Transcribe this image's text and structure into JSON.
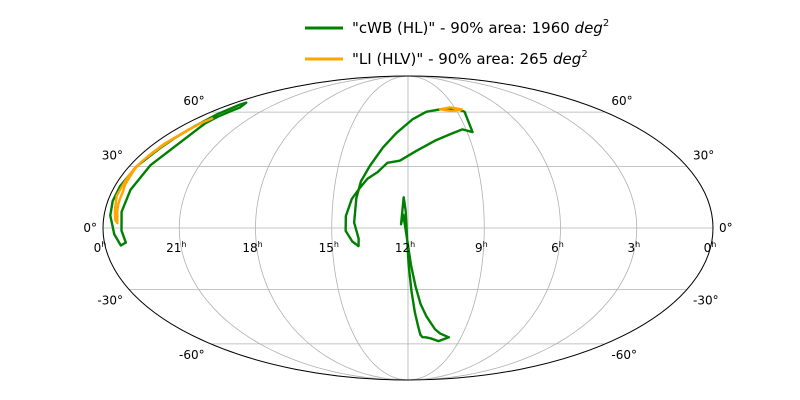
{
  "chart_data": {
    "type": "line",
    "projection": "mollweide",
    "grid": true,
    "legend_placement": "top-center",
    "ra_ticks": [
      {
        "value": 0,
        "label": "0",
        "sup": "h"
      },
      {
        "value": 21,
        "label": "21",
        "sup": "h"
      },
      {
        "value": 18,
        "label": "18",
        "sup": "h"
      },
      {
        "value": 15,
        "label": "15",
        "sup": "h"
      },
      {
        "value": 12,
        "label": "12",
        "sup": "h"
      },
      {
        "value": 9,
        "label": "9",
        "sup": "h"
      },
      {
        "value": 6,
        "label": "6",
        "sup": "h"
      },
      {
        "value": 3,
        "label": "3",
        "sup": "h"
      },
      {
        "value": 0,
        "label": "0",
        "sup": "h"
      }
    ],
    "dec_ticks": [
      {
        "value": 60,
        "label": "60°"
      },
      {
        "value": 30,
        "label": "30°"
      },
      {
        "value": 0,
        "label": "0°"
      },
      {
        "value": -30,
        "label": "-30°"
      },
      {
        "value": -60,
        "label": "-60°"
      }
    ],
    "series": [
      {
        "name_prefix": "\"cWB (HL)\" - 90% area: 1960 ",
        "name_unit": "deg",
        "name_exp": "2",
        "color": "#008000",
        "contours": [
          [
            [
              -4.1,
              1.8
            ],
            [
              -2.6,
              14.8
            ],
            [
              -1.4,
              8.4
            ],
            [
              -0.6,
              -4.3
            ],
            [
              0.4,
              -17.9
            ],
            [
              2.2,
              -30.6
            ],
            [
              4.8,
              -41.7
            ],
            [
              7.9,
              -49.8
            ],
            [
              10.3,
              -54.5
            ],
            [
              12.2,
              -55.9
            ],
            [
              15.1,
              -56.0
            ],
            [
              19.3,
              -56.6
            ],
            [
              27.0,
              -58.3
            ],
            [
              34.7,
              -56.0
            ],
            [
              26.4,
              -53.8
            ],
            [
              21.4,
              -51.3
            ],
            [
              17.6,
              -48.1
            ],
            [
              13.1,
              -43.8
            ],
            [
              8.6,
              -37.6
            ],
            [
              4.8,
              -28.4
            ],
            [
              1.8,
              -17.8
            ],
            [
              -0.9,
              -3.4
            ],
            [
              -2.8,
              6.4
            ],
            [
              -4.1,
              1.8
            ]
          ],
          [
            [
              49.1,
              48.3
            ],
            [
              42.2,
              49.8
            ],
            [
              32.8,
              47.4
            ],
            [
              20.2,
              43.8
            ],
            [
              5.5,
              38.0
            ],
            [
              -5.4,
              33.0
            ],
            [
              -13.5,
              31.9
            ],
            [
              -19.3,
              27.2
            ],
            [
              -25.3,
              23.9
            ],
            [
              -29.6,
              19.2
            ],
            [
              -33.8,
              14.0
            ],
            [
              -36.8,
              5.7
            ],
            [
              -36.8,
              -1.4
            ],
            [
              -33.0,
              -6.5
            ],
            [
              -29.4,
              -8.7
            ],
            [
              -29.2,
              -5.1
            ],
            [
              -31.8,
              2.6
            ],
            [
              -31.1,
              14.3
            ],
            [
              -29.2,
              22.6
            ],
            [
              -24.7,
              30.3
            ],
            [
              -17.4,
              39.9
            ],
            [
              -8.7,
              47.8
            ],
            [
              3.8,
              55.6
            ],
            [
              16.8,
              60.2
            ],
            [
              29.8,
              61.7
            ],
            [
              40.2,
              62.1
            ],
            [
              48.7,
              61.4
            ],
            [
              51.8,
              60.2
            ],
            [
              49.1,
              48.3
            ]
          ],
          [
            [
              -165.0,
              53.1
            ],
            [
              -164.8,
              57.2
            ],
            [
              -163.5,
              60.8
            ],
            [
              -162.7,
              62.9
            ],
            [
              -168.8,
              66.1
            ],
            [
              -170.0,
              64.8
            ],
            [
              -169.8,
              58.8
            ],
            [
              -169.5,
              51.6
            ],
            [
              -170.8,
              44.8
            ],
            [
              -171.9,
              39.9
            ],
            [
              -175.2,
              30.2
            ],
            [
              -176.7,
              20.4
            ],
            [
              -177.1,
              13.0
            ],
            [
              -176.3,
              6.0
            ],
            [
              -173.5,
              -3.0
            ],
            [
              -170.6,
              -8.4
            ],
            [
              -167.3,
              -7.0
            ],
            [
              -169.1,
              -1.3
            ],
            [
              -170.0,
              7.8
            ],
            [
              -169.2,
              18.5
            ],
            [
              -166.9,
              30.8
            ],
            [
              -165.0,
              53.1
            ]
          ]
        ]
      },
      {
        "name_prefix": "\"LI (HLV)\" - 90% area: 265 ",
        "name_unit": "deg",
        "name_exp": "2",
        "color": "#ffa500",
        "contours": [
          [
            [
              30.4,
              61.8
            ],
            [
              40.5,
              63.0
            ],
            [
              50.8,
              61.7
            ],
            [
              40.5,
              60.6
            ],
            [
              30.4,
              61.8
            ]
          ],
          [
            [
              -169.1,
              53.0
            ],
            [
              -166.8,
              56.2
            ],
            [
              -168.5,
              53.8
            ],
            [
              -170.0,
              49.8
            ],
            [
              -172.9,
              41.6
            ],
            [
              -174.1,
              35.5
            ],
            [
              -174.9,
              31.3
            ],
            [
              -174.9,
              28.4
            ],
            [
              -174.3,
              24.5
            ],
            [
              -174.2,
              20.9
            ],
            [
              -173.3,
              17.9
            ],
            [
              -173.2,
              13.7
            ],
            [
              -173.1,
              11.3
            ],
            [
              -172.6,
              8.0
            ],
            [
              -171.6,
              2.3
            ],
            [
              -173.1,
              4.0
            ],
            [
              -174.1,
              8.1
            ],
            [
              -175.9,
              15.4
            ],
            [
              -175.5,
              19.8
            ],
            [
              -175.4,
              23.8
            ],
            [
              -175.5,
              28.7
            ],
            [
              -174.5,
              33.4
            ],
            [
              -172.6,
              39.8
            ],
            [
              -171.3,
              44.5
            ],
            [
              -169.1,
              53.0
            ]
          ]
        ]
      }
    ]
  }
}
